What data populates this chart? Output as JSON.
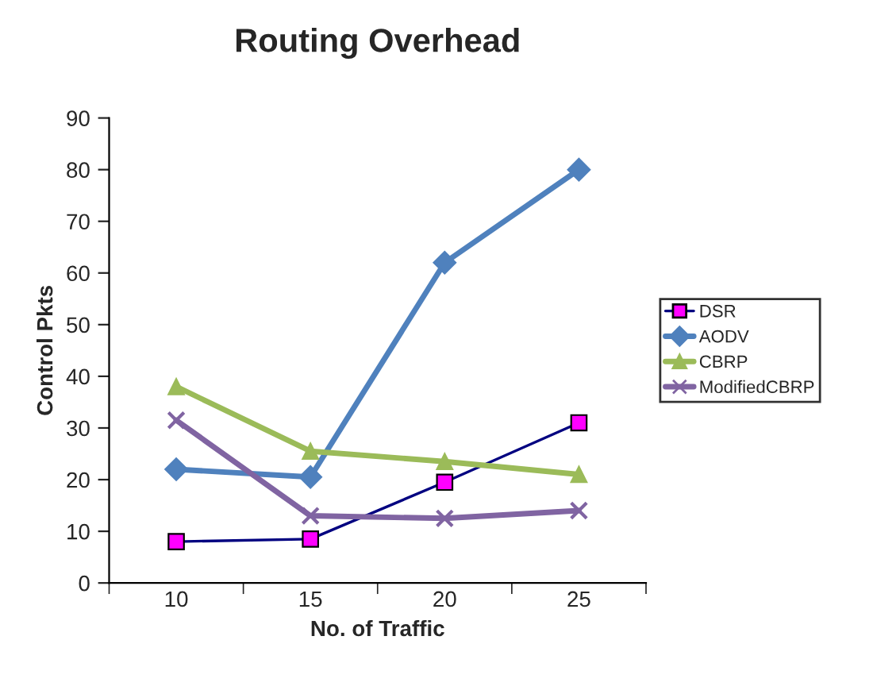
{
  "chart_data": {
    "type": "line",
    "title": "Routing Overhead",
    "xlabel": "No. of Traffic",
    "ylabel": "Control Pkts",
    "categories": [
      "10",
      "15",
      "20",
      "25"
    ],
    "series": [
      {
        "name": "DSR",
        "color": "#000080",
        "marker": "square",
        "values": [
          8,
          8.5,
          19.5,
          31
        ]
      },
      {
        "name": "AODV",
        "color": "#4f81bd",
        "marker": "diamond",
        "values": [
          22,
          20.5,
          62,
          80
        ]
      },
      {
        "name": "CBRP",
        "color": "#9bbb59",
        "marker": "triangle",
        "values": [
          38,
          25.5,
          23.5,
          21
        ]
      },
      {
        "name": "ModifiedCBRP",
        "color": "#8064a2",
        "marker": "cross",
        "values": [
          31.5,
          13,
          12.5,
          14
        ]
      }
    ],
    "ylim": [
      0,
      90
    ],
    "yticks": [
      0,
      10,
      20,
      30,
      40,
      50,
      60,
      70,
      80,
      90
    ],
    "grid": false,
    "legend": "right",
    "line_style": "solid"
  }
}
